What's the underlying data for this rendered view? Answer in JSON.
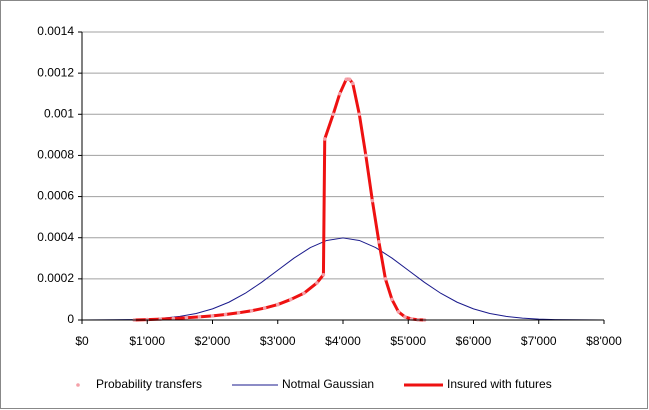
{
  "chart_data": {
    "type": "line",
    "xlim": [
      0,
      8000
    ],
    "ylim": [
      0,
      0.0014
    ],
    "xticks": [
      {
        "value": 0,
        "label": "$0"
      },
      {
        "value": 1000,
        "label": "$1'000"
      },
      {
        "value": 2000,
        "label": "$2'000"
      },
      {
        "value": 3000,
        "label": "$3'000"
      },
      {
        "value": 4000,
        "label": "$4'000"
      },
      {
        "value": 5000,
        "label": "$5'000"
      },
      {
        "value": 6000,
        "label": "$6'000"
      },
      {
        "value": 7000,
        "label": "$7'000"
      },
      {
        "value": 8000,
        "label": "$8'000"
      }
    ],
    "yticks": [
      0,
      0.0002,
      0.0004,
      0.0006,
      0.0008,
      0.001,
      0.0012,
      0.0014
    ],
    "grid": true,
    "legend": "bottom",
    "series": [
      {
        "name": "Probability transfers",
        "color": "#f4a0a8",
        "style": "points",
        "x": [
          800,
          1000,
          1200,
          1400,
          1600,
          1800,
          2000,
          2200,
          2400,
          2600,
          2800,
          3000,
          3200,
          3400,
          3600,
          3700,
          3720,
          3850,
          3950,
          4050,
          4100,
          4150,
          4250,
          4350,
          4450,
          4550,
          4650,
          4750,
          4850,
          4950,
          5050,
          5150,
          5250
        ],
        "values": [
          0,
          2e-06,
          4e-06,
          7e-06,
          1.1e-05,
          1.5e-05,
          2e-05,
          2.7e-05,
          3.5e-05,
          4.5e-05,
          5.8e-05,
          7.5e-05,
          0.0001,
          0.00013,
          0.00018,
          0.00022,
          0.00088,
          0.001,
          0.0011,
          0.00117,
          0.00117,
          0.00115,
          0.001,
          0.0008,
          0.00058,
          0.00038,
          0.0002,
          0.0001,
          4e-05,
          1.5e-05,
          5e-06,
          1e-06,
          0
        ]
      },
      {
        "name": "Notmal Gaussian",
        "color": "#1a1a8c",
        "style": "line",
        "width": 1,
        "x": [
          0,
          250,
          500,
          750,
          1000,
          1250,
          1500,
          1750,
          2000,
          2250,
          2500,
          2750,
          3000,
          3250,
          3500,
          3750,
          4000,
          4250,
          4500,
          4750,
          5000,
          5250,
          5500,
          5750,
          6000,
          6250,
          6500,
          6750,
          7000,
          7250,
          7500,
          7750,
          8000
        ],
        "values": [
          1e-07,
          4e-07,
          9e-07,
          2e-06,
          4.4e-06,
          9.1e-06,
          1.75e-05,
          3.17e-05,
          5.4e-05,
          8.63e-05,
          0.0001295,
          0.0001826,
          0.000242,
          0.0003011,
          0.0003521,
          0.0003867,
          0.0003989,
          0.0003867,
          0.0003521,
          0.0003011,
          0.000242,
          0.0001826,
          0.0001295,
          8.63e-05,
          5.4e-05,
          3.17e-05,
          1.75e-05,
          9.1e-06,
          4.4e-06,
          2e-06,
          9e-07,
          4e-07,
          1e-07
        ]
      },
      {
        "name": "Insured with futures",
        "color": "#ee1111",
        "style": "line",
        "width": 3,
        "x": [
          800,
          1000,
          1200,
          1400,
          1600,
          1800,
          2000,
          2200,
          2400,
          2600,
          2800,
          3000,
          3200,
          3400,
          3600,
          3700,
          3720,
          3850,
          3950,
          4050,
          4100,
          4150,
          4250,
          4350,
          4450,
          4550,
          4650,
          4750,
          4850,
          4950,
          5050,
          5150,
          5250
        ],
        "values": [
          0,
          2e-06,
          4e-06,
          7e-06,
          1.1e-05,
          1.5e-05,
          2e-05,
          2.7e-05,
          3.5e-05,
          4.5e-05,
          5.8e-05,
          7.5e-05,
          0.0001,
          0.00013,
          0.00018,
          0.00022,
          0.00088,
          0.001,
          0.0011,
          0.00117,
          0.00117,
          0.00115,
          0.001,
          0.0008,
          0.00058,
          0.00038,
          0.0002,
          0.0001,
          4e-05,
          1.5e-05,
          5e-06,
          1e-06,
          0
        ]
      }
    ]
  }
}
